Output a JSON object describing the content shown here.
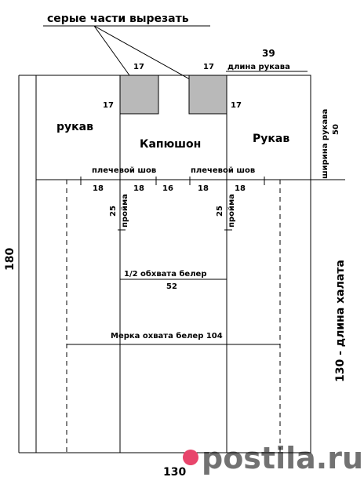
{
  "callout": {
    "text": "серые части вырезать"
  },
  "top": {
    "cut_left_width": "17",
    "cut_right_width": "17",
    "cut_left_height": "17",
    "cut_right_height": "17",
    "sleeve_length_value": "39",
    "sleeve_length_label": "длина рукава"
  },
  "parts": {
    "sleeve_left": "рукав",
    "hood": "Капюшон",
    "sleeve_right": "Рукав"
  },
  "shoulder": {
    "left_label": "плечевой шов",
    "right_label": "плечевой шов",
    "segments": [
      "18",
      "18",
      "16",
      "18",
      "18"
    ]
  },
  "armhole": {
    "left_value": "25",
    "left_label": "пройма",
    "right_value": "25",
    "right_label": "пройма"
  },
  "hip_half": {
    "label": "1/2 обхвата белер",
    "value": "52"
  },
  "hip_full": {
    "label": "Мерка охвата белер 104"
  },
  "side": {
    "sleeve_width_label": "ширина рукава",
    "sleeve_width_value": "50",
    "total_height": "180",
    "robe_length": "130 - длина халата"
  },
  "bottom_width": "130",
  "watermark": "postila.ru",
  "colors": {
    "gray_cut": "#b9b9b9",
    "watermark": "#e8456b"
  }
}
